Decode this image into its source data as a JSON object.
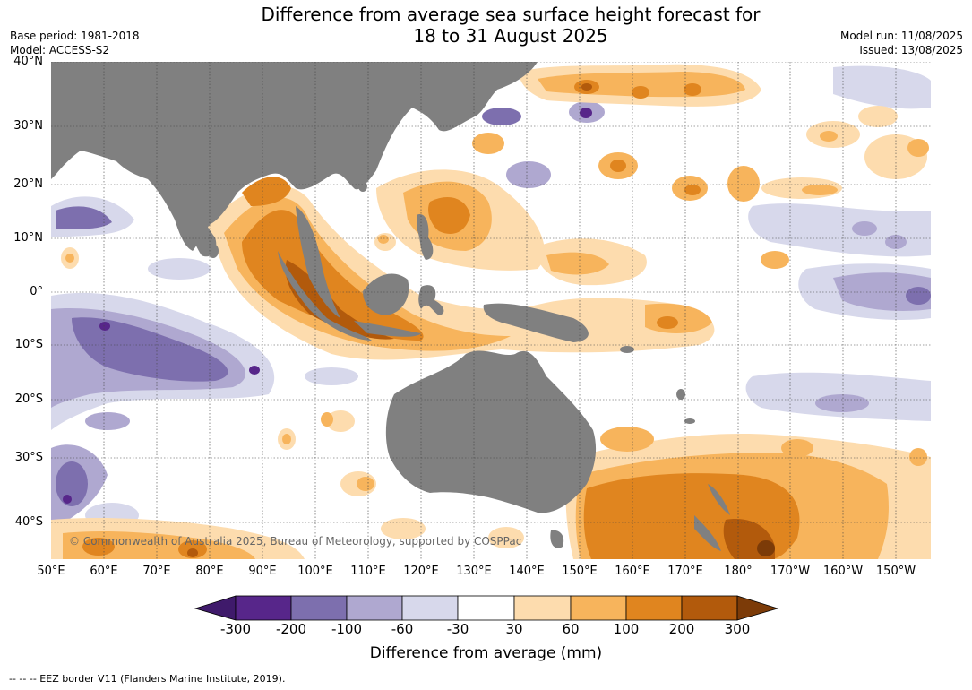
{
  "title_line1": "Difference from average sea surface height forecast for",
  "title_line2": "18 to 31 August 2025",
  "base_period": "Base period: 1981-2018",
  "model": "Model: ACCESS-S2",
  "model_run": "Model run: 11/08/2025",
  "issued": "Issued: 13/08/2025",
  "latitude_labels": [
    "40°N",
    "30°N",
    "20°N",
    "10°N",
    "0°",
    "10°S",
    "20°S",
    "30°S",
    "40°S"
  ],
  "longitude_labels": [
    "50°E",
    "60°E",
    "70°E",
    "80°E",
    "90°E",
    "100°E",
    "110°E",
    "120°E",
    "130°E",
    "140°E",
    "150°E",
    "160°E",
    "170°E",
    "180°",
    "170°W",
    "160°W",
    "150°W"
  ],
  "colorbar": {
    "ticks": [
      "-300",
      "-200",
      "-100",
      "-60",
      "-30",
      "30",
      "60",
      "100",
      "200",
      "300"
    ],
    "colors": [
      "#3f1a6b",
      "#57268a",
      "#7d6fae",
      "#afa8d0",
      "#d7d8eb",
      "#ffffff",
      "#fddcae",
      "#f7b45c",
      "#e0851f",
      "#b25a0c",
      "#7c3b08"
    ],
    "label": "Difference from average (mm)"
  },
  "copyright": "© Commonwealth of Australia 2025, Bureau of Meteorology, supported by COSPPac",
  "footnote": "--  --  -- EEZ border V11 (Flanders Marine Institute, 2019).",
  "land_color": "#808080"
}
